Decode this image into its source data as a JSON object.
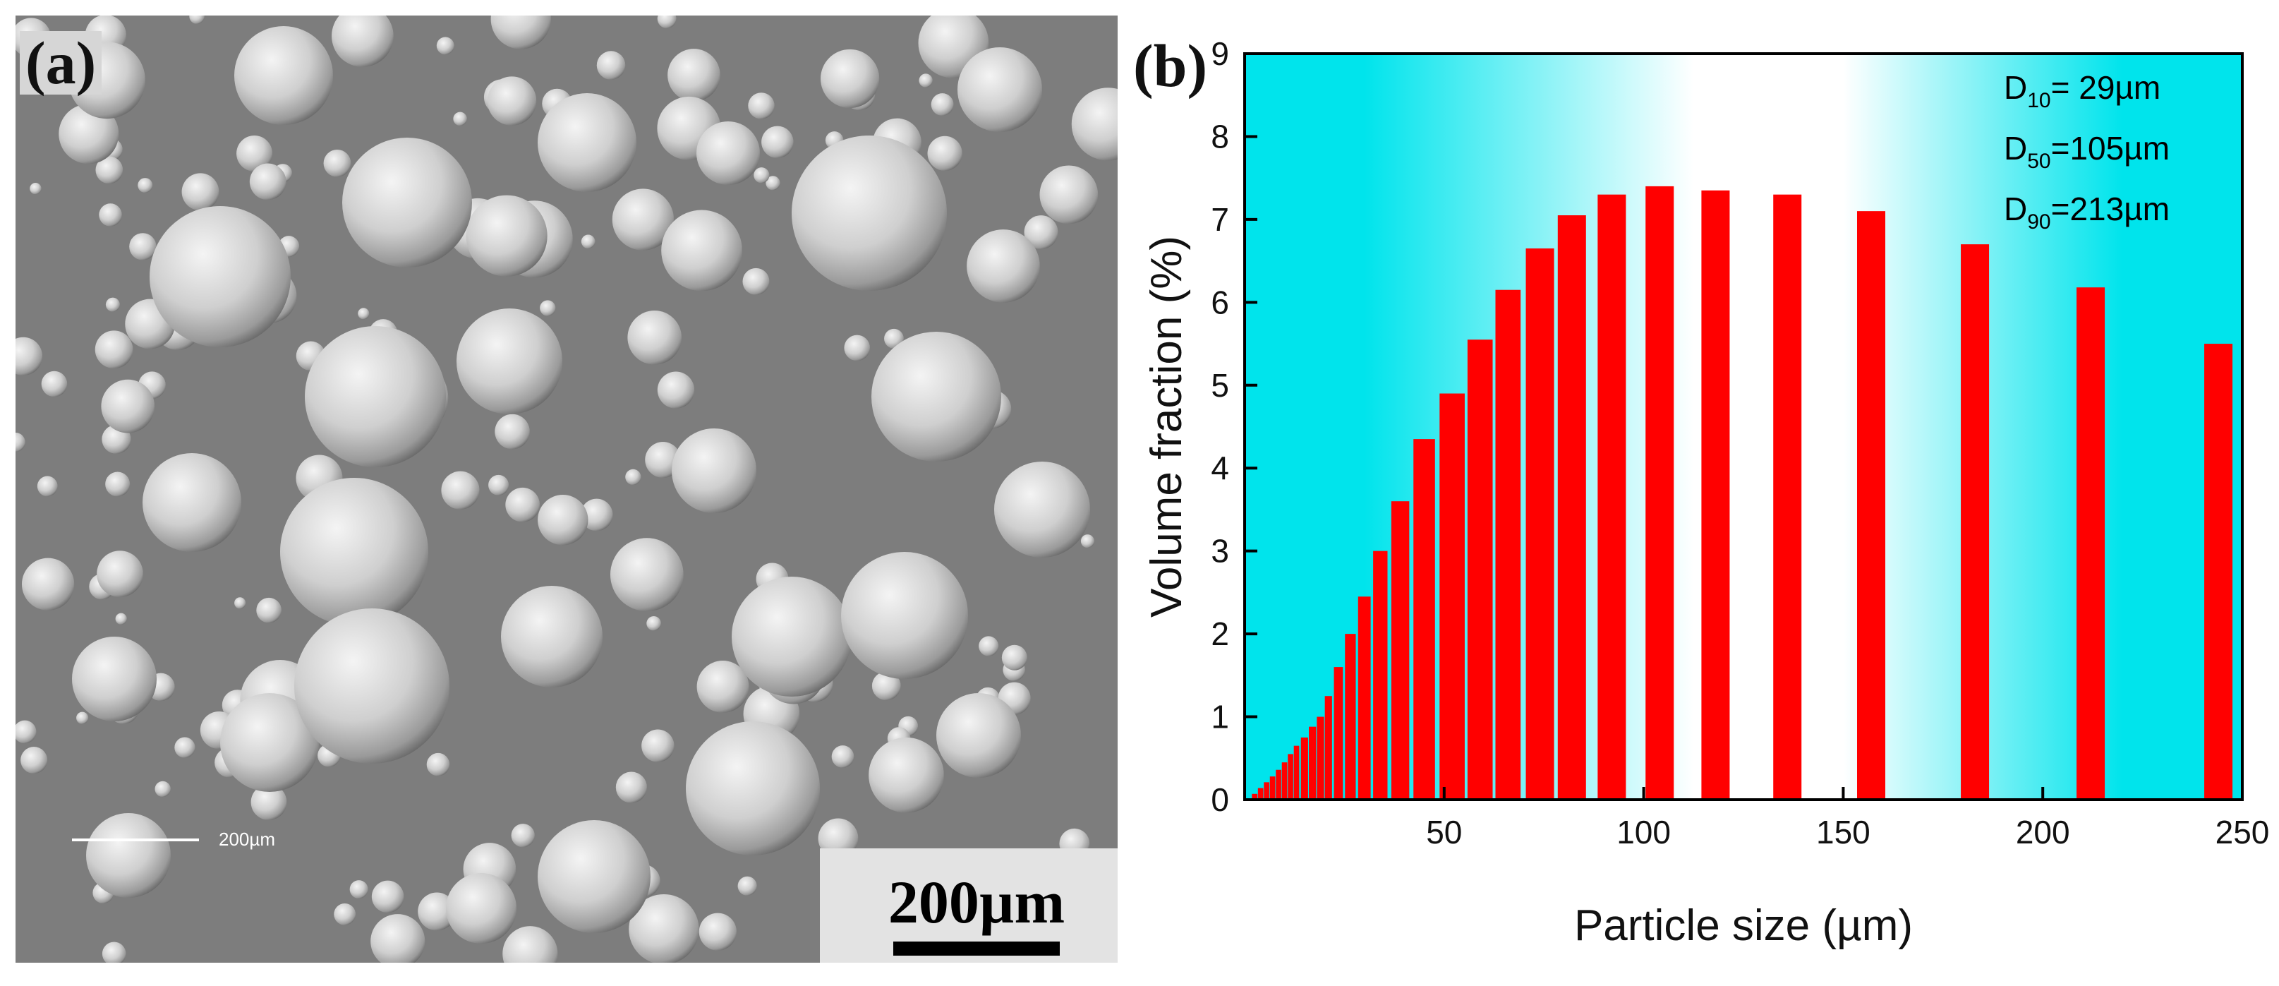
{
  "panel_a": {
    "label": "(a)",
    "scale_label": "200µm",
    "instrument_scale_label": "200µm"
  },
  "panel_b": {
    "label": "(b)"
  },
  "chart_data": {
    "type": "bar",
    "title": "",
    "xlabel": "Particle size (µm)",
    "ylabel": "Volume fraction (%)",
    "xlim": [
      0,
      250
    ],
    "ylim": [
      0,
      9
    ],
    "xticks": [
      50,
      100,
      150,
      200,
      250
    ],
    "yticks": [
      0,
      1,
      2,
      3,
      4,
      5,
      6,
      7,
      8,
      9
    ],
    "x": [
      2.5,
      4,
      5.5,
      7,
      8.5,
      10,
      11.5,
      13,
      15,
      17,
      19,
      21,
      23.5,
      26.5,
      30,
      34,
      39,
      45,
      52,
      59,
      66,
      74,
      82,
      92,
      104,
      118,
      136,
      157,
      183,
      212,
      244
    ],
    "values": [
      0.07,
      0.14,
      0.21,
      0.28,
      0.36,
      0.45,
      0.55,
      0.65,
      0.75,
      0.88,
      1.0,
      1.25,
      1.6,
      2.0,
      2.45,
      3.0,
      3.6,
      4.35,
      4.9,
      5.55,
      6.15,
      6.65,
      7.05,
      7.3,
      7.4,
      7.35,
      7.3,
      7.1,
      6.7,
      6.18,
      5.5
    ],
    "annotations": {
      "D10": {
        "sub": "10",
        "value": "= 29µm"
      },
      "D50": {
        "sub": "50",
        "value": "=105µm"
      },
      "D90": {
        "sub": "90",
        "value": "=213µm"
      }
    },
    "colors": {
      "bar": "#ff0000",
      "bg_edge": "#00e5ee",
      "bg_center": "#ffffff"
    }
  }
}
